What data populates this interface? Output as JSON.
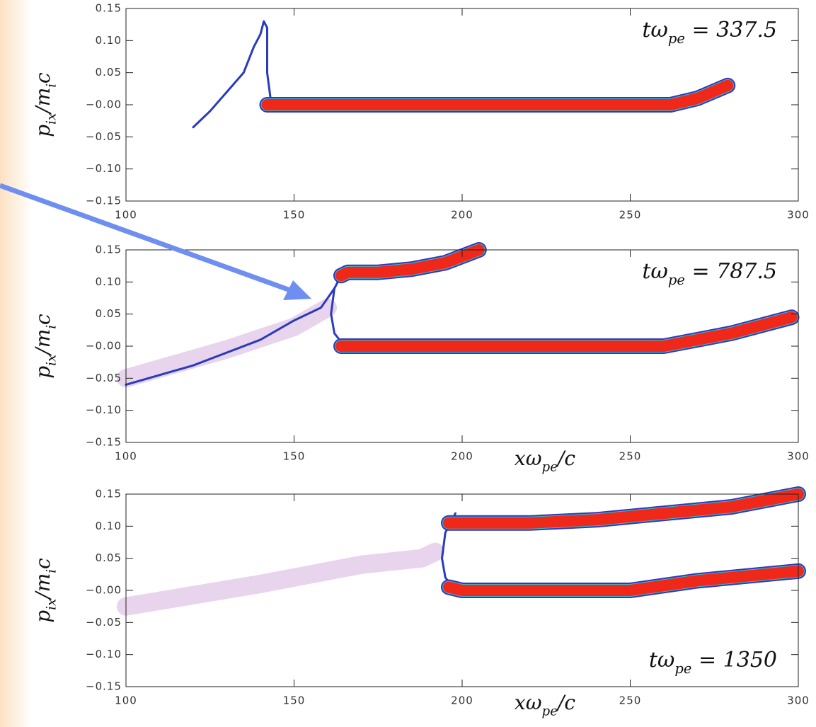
{
  "chart_data": [
    {
      "type": "line",
      "ylabel": [
        "p",
        "ix",
        "/m",
        "i",
        "c"
      ],
      "annotation": [
        "tω",
        "pe",
        " = 337.5"
      ],
      "annotation_corner": "top-right",
      "xlim": [
        100,
        300
      ],
      "ylim": [
        -0.15,
        0.15
      ],
      "xticks": [
        100,
        150,
        200,
        250,
        300
      ],
      "yticks": [
        0.15,
        {
          "value": 0.1,
          "label": "0.10"
        },
        0.05,
        {
          "value": 0,
          "label": "−0.00"
        },
        {
          "value": -0.05,
          "label": "−0.05"
        },
        {
          "value": -0.1,
          "label": "−0.10"
        },
        {
          "value": -0.15,
          "label": "−0.15"
        }
      ],
      "series": [
        {
          "kind": "line",
          "color": "#2a3bbd",
          "x": [
            120,
            125,
            130,
            135,
            138,
            140,
            141,
            142,
            142,
            143
          ],
          "values": [
            -0.035,
            -0.01,
            0.02,
            0.05,
            0.09,
            0.11,
            0.13,
            0.12,
            0.05,
            0.01
          ]
        },
        {
          "kind": "band",
          "color": "#f0281a",
          "x": [
            142,
            150,
            200,
            250,
            262,
            270,
            279
          ],
          "values": [
            0,
            0,
            0,
            0,
            0,
            0.01,
            0.03
          ]
        }
      ]
    },
    {
      "type": "line",
      "ylabel": [
        "p",
        "ix",
        "/m",
        "i",
        "c"
      ],
      "annotation": [
        "tω",
        "pe",
        " = 787.5"
      ],
      "annotation_corner": "top-right",
      "xlabel": [
        "xω",
        "pe",
        "/c"
      ],
      "xlim": [
        100,
        300
      ],
      "ylim": [
        -0.15,
        0.15
      ],
      "xticks": [
        100,
        150,
        200,
        250,
        300
      ],
      "yticks": [
        0.15,
        {
          "value": 0.1,
          "label": "0.10"
        },
        0.05,
        {
          "value": 0,
          "label": "−0.00"
        },
        {
          "value": -0.05,
          "label": "−0.05"
        },
        {
          "value": -0.1,
          "label": "−0.10"
        },
        {
          "value": -0.15,
          "label": "−0.15"
        }
      ],
      "series": [
        {
          "kind": "haze",
          "color": "#d9b8e0",
          "x": [
            100,
            130,
            150,
            160
          ],
          "values": [
            -0.05,
            -0.005,
            0.03,
            0.06
          ]
        },
        {
          "kind": "line",
          "color": "#2a3bbd",
          "x": [
            100,
            120,
            140,
            150,
            158,
            162
          ],
          "values": [
            -0.06,
            -0.03,
            0.01,
            0.04,
            0.06,
            0.09
          ]
        },
        {
          "kind": "line",
          "color": "#2a3bbd",
          "x": [
            165,
            162,
            161,
            162,
            165
          ],
          "values": [
            0.12,
            0.09,
            0.05,
            0.02,
            0
          ]
        },
        {
          "kind": "band",
          "color": "#f0281a",
          "x": [
            164,
            166,
            175,
            185,
            195,
            205
          ],
          "values": [
            0.11,
            0.115,
            0.115,
            0.12,
            0.13,
            0.15
          ]
        },
        {
          "kind": "band",
          "color": "#f0281a",
          "x": [
            164,
            170,
            200,
            250,
            260,
            280,
            298
          ],
          "values": [
            0,
            0,
            0,
            0,
            0,
            0.02,
            0.045
          ]
        }
      ]
    },
    {
      "type": "line",
      "ylabel": [
        "p",
        "ix",
        "/m",
        "i",
        "c"
      ],
      "annotation": [
        "tω",
        "pe",
        " = 1350"
      ],
      "annotation_corner": "bottom-right",
      "xlabel": [
        "xω",
        "pe",
        "/c"
      ],
      "xlim": [
        100,
        300
      ],
      "ylim": [
        -0.15,
        0.15
      ],
      "xticks": [
        100,
        150,
        200,
        250,
        300
      ],
      "yticks": [
        0.15,
        {
          "value": 0.1,
          "label": "0.10"
        },
        0.05,
        {
          "value": 0,
          "label": "−0.00"
        },
        {
          "value": -0.05,
          "label": "−0.05"
        },
        {
          "value": -0.1,
          "label": "−0.10"
        },
        {
          "value": -0.15,
          "label": "−0.15"
        }
      ],
      "series": [
        {
          "kind": "haze",
          "color": "#d9b8e0",
          "x": [
            100,
            140,
            170,
            188,
            192
          ],
          "values": [
            -0.025,
            0.01,
            0.04,
            0.05,
            0.06
          ]
        },
        {
          "kind": "line",
          "color": "#2a3bbd",
          "x": [
            198,
            195,
            194,
            195,
            198
          ],
          "values": [
            0.12,
            0.09,
            0.05,
            0.02,
            0
          ]
        },
        {
          "kind": "band",
          "color": "#f0281a",
          "x": [
            196,
            200,
            220,
            240,
            260,
            280,
            300
          ],
          "values": [
            0.105,
            0.105,
            0.105,
            0.11,
            0.12,
            0.13,
            0.15
          ]
        },
        {
          "kind": "band",
          "color": "#f0281a",
          "x": [
            196,
            200,
            210,
            240,
            250,
            270,
            300
          ],
          "values": [
            0.005,
            0,
            0,
            0,
            0,
            0.015,
            0.03
          ]
        }
      ]
    }
  ]
}
